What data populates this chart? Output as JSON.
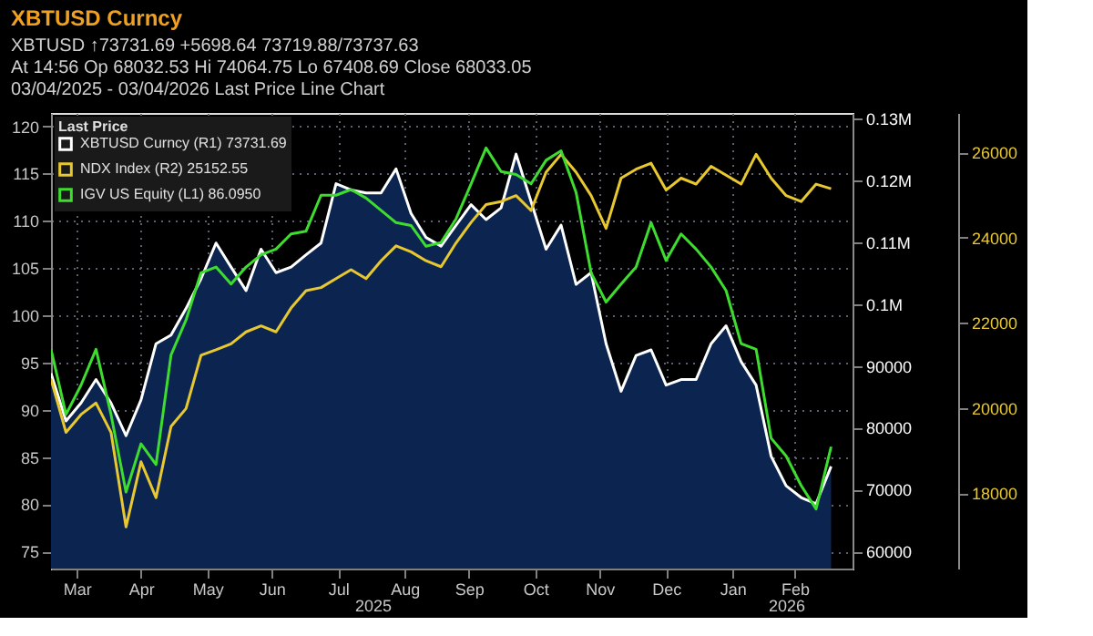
{
  "chart_data": {
    "type": "line",
    "title": "XBTUSD Curncy",
    "annotations": [
      "XBTUSD ↑73731.69 +5698.64   73719.88/73737.63",
      "At 14:56  Op 68032.53  Hi 74064.75  Lo 67408.69  Close 68033.05",
      "03/04/2025 - 03/04/2026   Last Price   Line Chart"
    ],
    "x2lim": [
      "2025-03-04",
      "2026-03-13"
    ],
    "x2ticks": [
      {
        "value": "2025-08-01",
        "label": "2025"
      },
      {
        "value": "2026-02-10",
        "label": "2026"
      }
    ],
    "legend_title": "Last Price",
    "legend": "top left",
    "grid": true,
    "x": [
      "2025-03-04",
      "2025-03-11",
      "2025-03-18",
      "2025-03-25",
      "2025-04-01",
      "2025-04-08",
      "2025-04-15",
      "2025-04-22",
      "2025-04-29",
      "2025-05-06",
      "2025-05-13",
      "2025-05-20",
      "2025-05-27",
      "2025-06-03",
      "2025-06-10",
      "2025-06-17",
      "2025-06-24",
      "2025-07-01",
      "2025-07-08",
      "2025-07-15",
      "2025-07-22",
      "2025-07-29",
      "2025-08-05",
      "2025-08-12",
      "2025-08-19",
      "2025-08-26",
      "2025-09-02",
      "2025-09-09",
      "2025-09-16",
      "2025-09-23",
      "2025-09-30",
      "2025-10-07",
      "2025-10-14",
      "2025-10-21",
      "2025-10-28",
      "2025-11-04",
      "2025-11-11",
      "2025-11-18",
      "2025-11-25",
      "2025-12-02",
      "2025-12-09",
      "2025-12-16",
      "2025-12-23",
      "2025-12-30",
      "2026-01-06",
      "2026-01-13",
      "2026-01-20",
      "2026-01-27",
      "2026-02-03",
      "2026-02-10",
      "2026-02-17",
      "2026-02-24",
      "2026-03-03"
    ],
    "xlim": [
      "2025-03-04",
      "2026-03-13"
    ],
    "xticks": [
      {
        "value": "2025-03-16",
        "label": "Mar"
      },
      {
        "value": "2025-04-15",
        "label": "Apr"
      },
      {
        "value": "2025-05-16",
        "label": "May"
      },
      {
        "value": "2025-06-15",
        "label": "Jun"
      },
      {
        "value": "2025-07-16",
        "label": "Jul"
      },
      {
        "value": "2025-08-16",
        "label": "Aug"
      },
      {
        "value": "2025-09-15",
        "label": "Sep"
      },
      {
        "value": "2025-10-16",
        "label": "Oct"
      },
      {
        "value": "2025-11-15",
        "label": "Nov"
      },
      {
        "value": "2025-12-16",
        "label": "Dec"
      },
      {
        "value": "2026-01-16",
        "label": "Jan"
      },
      {
        "value": "2026-02-14",
        "label": "Feb"
      }
    ],
    "ylim": [
      73.2,
      121.4
    ],
    "yticks": [
      75,
      80,
      85,
      90,
      95,
      100,
      105,
      110,
      115,
      120
    ],
    "y2lim": [
      57200,
      130950
    ],
    "y2ticks": [
      60000,
      70000,
      80000,
      90000,
      {
        "value": 100000,
        "label": "0.1M"
      },
      {
        "value": 110000,
        "label": "0.11M"
      },
      {
        "value": 120000,
        "label": "0.12M"
      },
      {
        "value": 130000,
        "label": "0.13M"
      }
    ],
    "y3lim": [
      16233,
      26930
    ],
    "y3ticks": [
      18000,
      20000,
      22000,
      24000,
      26000
    ],
    "series": [
      {
        "name": "XBTUSD Curncy (R1) 73731.69",
        "type": "area",
        "axis": "y2",
        "color": "#ffffff",
        "values": [
          88800,
          81100,
          84000,
          87800,
          84000,
          78700,
          84500,
          93600,
          95000,
          99300,
          104100,
          109900,
          106000,
          102200,
          108900,
          105100,
          106000,
          108000,
          109900,
          119500,
          118500,
          118000,
          118000,
          121900,
          114700,
          110800,
          109400,
          112800,
          116100,
          113700,
          115600,
          124300,
          116600,
          108900,
          112800,
          103200,
          105100,
          93600,
          85900,
          91700,
          92600,
          86900,
          87800,
          87800,
          93600,
          96500,
          90700,
          86900,
          75400,
          70600,
          68700,
          67700,
          73731.69
        ]
      },
      {
        "name": "NDX Index (R2) 25152.55",
        "type": "line",
        "axis": "y3",
        "color": "#e8c830",
        "values": [
          20680,
          19430,
          19850,
          20120,
          19430,
          17210,
          18740,
          17900,
          19570,
          19990,
          21240,
          21370,
          21510,
          21790,
          21930,
          21790,
          22350,
          22760,
          22830,
          23040,
          23250,
          23040,
          23460,
          23810,
          23670,
          23460,
          23320,
          23880,
          24360,
          24780,
          24850,
          24990,
          24640,
          25540,
          25960,
          25540,
          24990,
          24220,
          25400,
          25610,
          25750,
          25120,
          25400,
          25260,
          25680,
          25470,
          25260,
          25960,
          25400,
          24990,
          24850,
          25260,
          25152.55
        ]
      },
      {
        "name": "IGV US Equity (L1) 86.0950",
        "type": "line",
        "color": "#3ddc2f",
        "values": [
          96.4,
          89.5,
          92.6,
          96.4,
          89.5,
          81.3,
          86.4,
          84.2,
          95.8,
          99.5,
          104.5,
          105.1,
          103.3,
          105.1,
          106.4,
          107,
          108.6,
          108.9,
          112.7,
          112.7,
          113.3,
          112.4,
          111.1,
          109.8,
          109.5,
          107.3,
          107.7,
          110.2,
          113.9,
          117.7,
          115.2,
          114.9,
          113.9,
          116.4,
          117.4,
          113,
          104.5,
          101.4,
          103.3,
          105.1,
          109.8,
          105.8,
          108.6,
          107,
          105.1,
          102.6,
          97,
          96.4,
          87,
          85.1,
          82,
          79.5,
          86.095
        ]
      }
    ]
  }
}
